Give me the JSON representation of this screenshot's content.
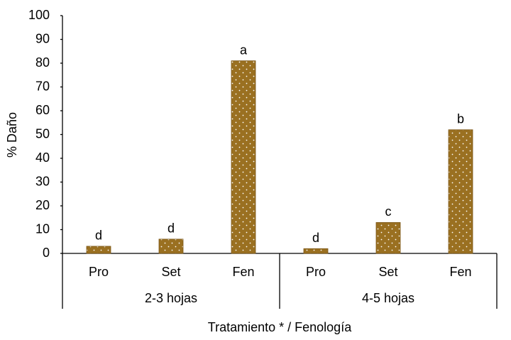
{
  "chart_data": {
    "type": "bar",
    "y_label": "% Daño",
    "x_label": "Tratamiento * / Fenología",
    "color": "#9a7021",
    "groups": [
      {
        "label": "2-3 hojas",
        "categories": [
          "Pro",
          "Set",
          "Fen"
        ],
        "values": [
          3,
          6,
          81
        ],
        "annotations": [
          "d",
          "d",
          "a"
        ]
      },
      {
        "label": "4-5 hojas",
        "categories": [
          "Pro",
          "Set",
          "Fen"
        ],
        "values": [
          2,
          13,
          52
        ],
        "annotations": [
          "d",
          "c",
          "b"
        ]
      }
    ],
    "ylim": [
      0,
      100
    ],
    "yticks": [
      0,
      10,
      20,
      30,
      40,
      50,
      60,
      70,
      80,
      90,
      100
    ]
  }
}
